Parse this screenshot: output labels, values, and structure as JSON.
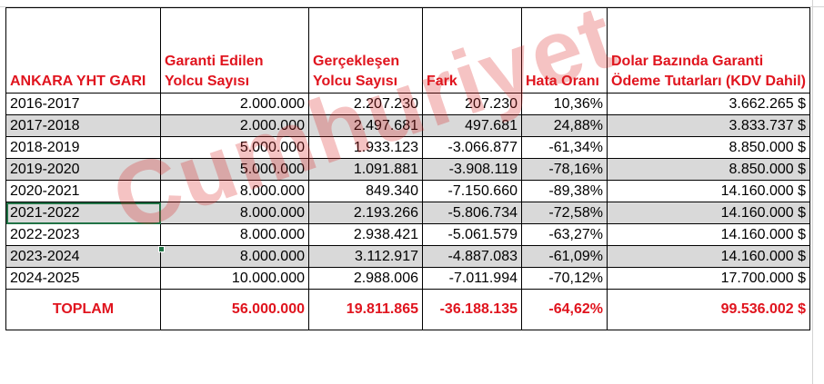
{
  "table": {
    "headers": [
      "ANKARA YHT GARI",
      "Garanti Edilen Yolcu Sayısı",
      "Gerçekleşen Yolcu Sayısı",
      "Fark",
      "Hata Oranı",
      "Dolar Bazında Garanti Ödeme Tutarları (KDV Dahil)"
    ],
    "rows": [
      [
        "2016-2017",
        "2.000.000",
        "2.207.230",
        "207.230",
        "10,36%",
        "3.662.265 $"
      ],
      [
        "2017-2018",
        "2.000.000",
        "2.497.681",
        "497.681",
        "24,88%",
        "3.833.737 $"
      ],
      [
        "2018-2019",
        "5.000.000",
        "1.933.123",
        "-3.066.877",
        "-61,34%",
        "8.850.000 $"
      ],
      [
        "2019-2020",
        "5.000.000",
        "1.091.881",
        "-3.908.119",
        "-78,16%",
        "8.850.000 $"
      ],
      [
        "2020-2021",
        "8.000.000",
        "849.340",
        "-7.150.660",
        "-89,38%",
        "14.160.000 $"
      ],
      [
        "2021-2022",
        "8.000.000",
        "2.193.266",
        "-5.806.734",
        "-72,58%",
        "14.160.000 $"
      ],
      [
        "2022-2023",
        "8.000.000",
        "2.938.421",
        "-5.061.579",
        "-63,27%",
        "14.160.000 $"
      ],
      [
        "2023-2024",
        "8.000.000",
        "3.112.917",
        "-4.887.083",
        "-61,09%",
        "14.160.000 $"
      ],
      [
        "2024-2025",
        "10.000.000",
        "2.988.006",
        "-7.011.994",
        "-70,12%",
        "17.700.000 $"
      ]
    ],
    "total": [
      "TOPLAM",
      "56.000.000",
      "19.811.865",
      "-36.188.135",
      "-64,62%",
      "99.536.002 $"
    ]
  },
  "watermark": "Cumhuriyet",
  "colors": {
    "header_text": "#e0141e",
    "shaded_row": "#d9d9d9",
    "selection": "#217346"
  }
}
